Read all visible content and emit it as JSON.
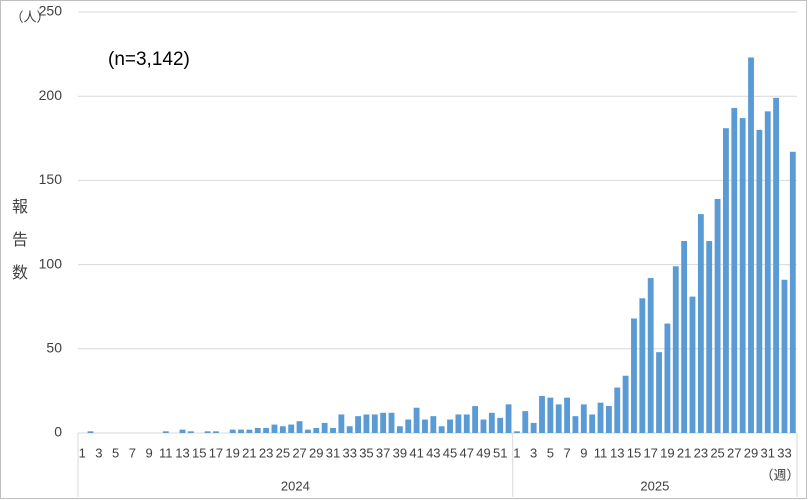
{
  "chart_data": {
    "type": "bar",
    "annotation": "(n=3,142)",
    "y_unit": "（人）",
    "x_unit": "（週）",
    "ylabel": "報告数",
    "groups": [
      "2024",
      "2025"
    ],
    "categories": [
      "1",
      null,
      "3",
      null,
      "5",
      null,
      "7",
      null,
      "9",
      null,
      "11",
      null,
      "13",
      null,
      "15",
      null,
      "17",
      null,
      "19",
      null,
      "21",
      null,
      "23",
      null,
      "25",
      null,
      "27",
      null,
      "29",
      null,
      "31",
      null,
      "33",
      null,
      "35",
      null,
      "37",
      null,
      "39",
      null,
      "41",
      null,
      "43",
      null,
      "45",
      null,
      "47",
      null,
      "49",
      null,
      "51",
      null,
      "1",
      null,
      "3",
      null,
      "5",
      null,
      "7",
      null,
      "9",
      null,
      "11",
      null,
      "13",
      null,
      "15",
      null,
      "17",
      null,
      "19",
      null,
      "21",
      null,
      "23",
      null,
      "25",
      null,
      "27",
      null,
      "29",
      null,
      "31",
      null,
      "33",
      null
    ],
    "values": [
      0,
      1,
      0,
      0,
      0,
      0,
      0,
      0,
      0,
      0,
      1,
      0,
      2,
      1,
      0,
      1,
      1,
      0,
      2,
      2,
      2,
      3,
      3,
      5,
      4,
      5,
      7,
      2,
      3,
      6,
      3,
      11,
      4,
      10,
      11,
      11,
      12,
      12,
      4,
      8,
      15,
      8,
      10,
      4,
      8,
      11,
      11,
      16,
      8,
      12,
      9,
      17,
      1,
      13,
      6,
      22,
      21,
      17,
      21,
      10,
      17,
      11,
      18,
      16,
      27,
      34,
      68,
      80,
      92,
      48,
      65,
      99,
      114,
      81,
      130,
      114,
      139,
      181,
      193,
      187,
      223,
      180,
      191,
      199,
      91,
      167
    ],
    "color": "#5b9bd5",
    "ylim": [
      0,
      250
    ],
    "yticks": [
      0,
      50,
      100,
      150,
      200,
      250
    ],
    "grid": true
  }
}
